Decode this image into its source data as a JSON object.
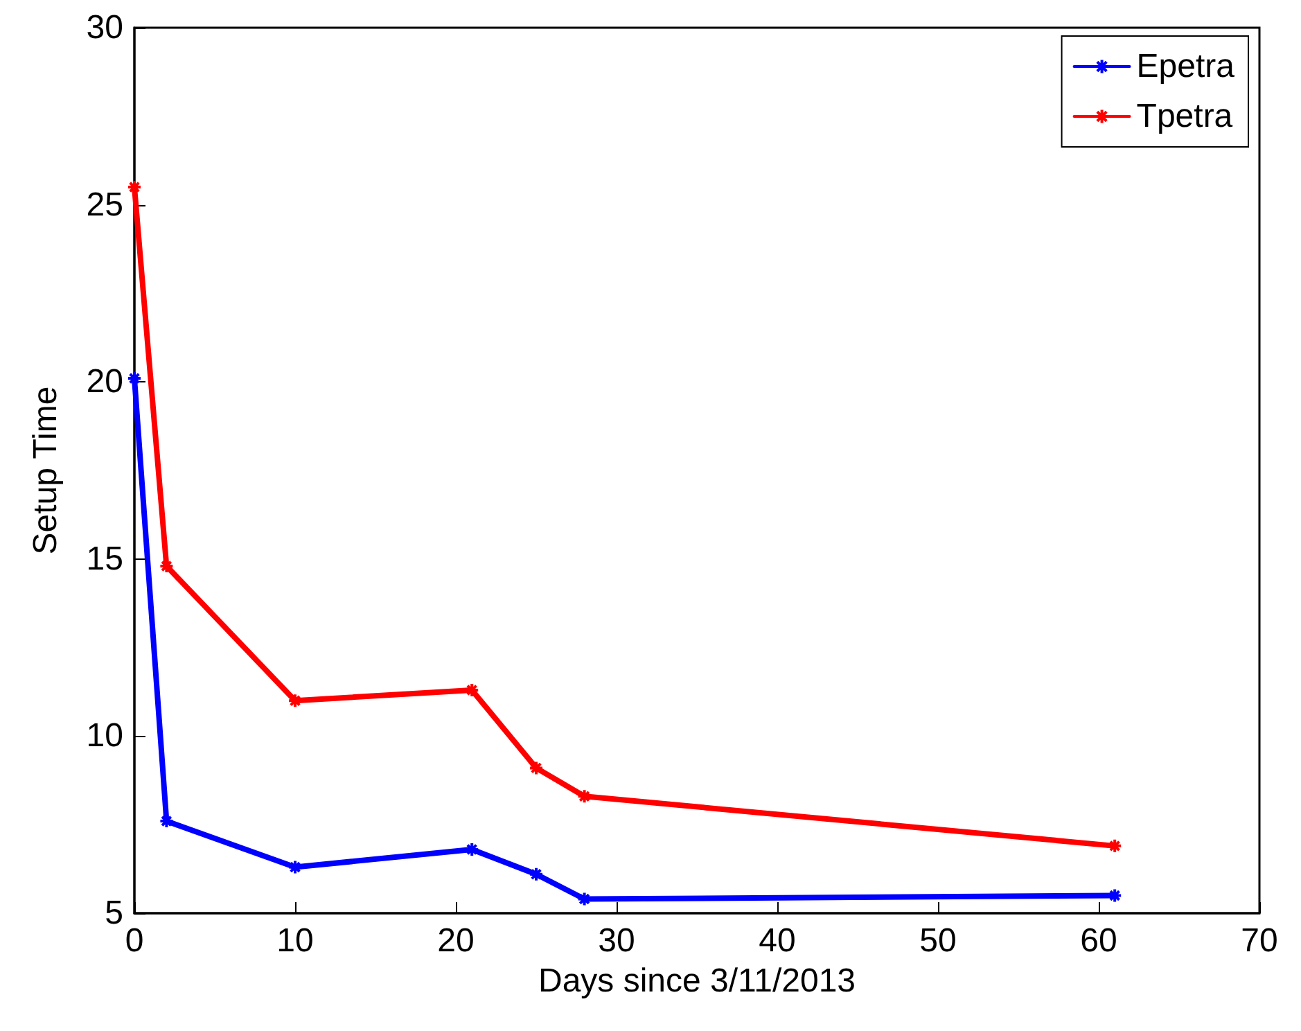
{
  "chart_data": {
    "type": "line",
    "xlabel": "Days since 3/11/2013",
    "ylabel": "Setup Time",
    "x": [
      0,
      2,
      10,
      21,
      25,
      28,
      61
    ],
    "series": [
      {
        "name": "Epetra",
        "color": "#0000ff",
        "values": [
          20.1,
          7.6,
          6.3,
          6.8,
          6.1,
          5.4,
          5.5
        ]
      },
      {
        "name": "Tpetra",
        "color": "#ff0000",
        "values": [
          25.5,
          14.8,
          11.0,
          11.3,
          9.1,
          8.3,
          6.9
        ]
      }
    ],
    "xlim": [
      0,
      70
    ],
    "xticks": [
      0,
      10,
      20,
      30,
      40,
      50,
      60,
      70
    ],
    "ylim": [
      5,
      30
    ],
    "yticks": [
      5,
      10,
      15,
      20,
      25,
      30
    ],
    "grid": false,
    "legend": "top right",
    "marker": "cross",
    "line_style": "solid"
  }
}
